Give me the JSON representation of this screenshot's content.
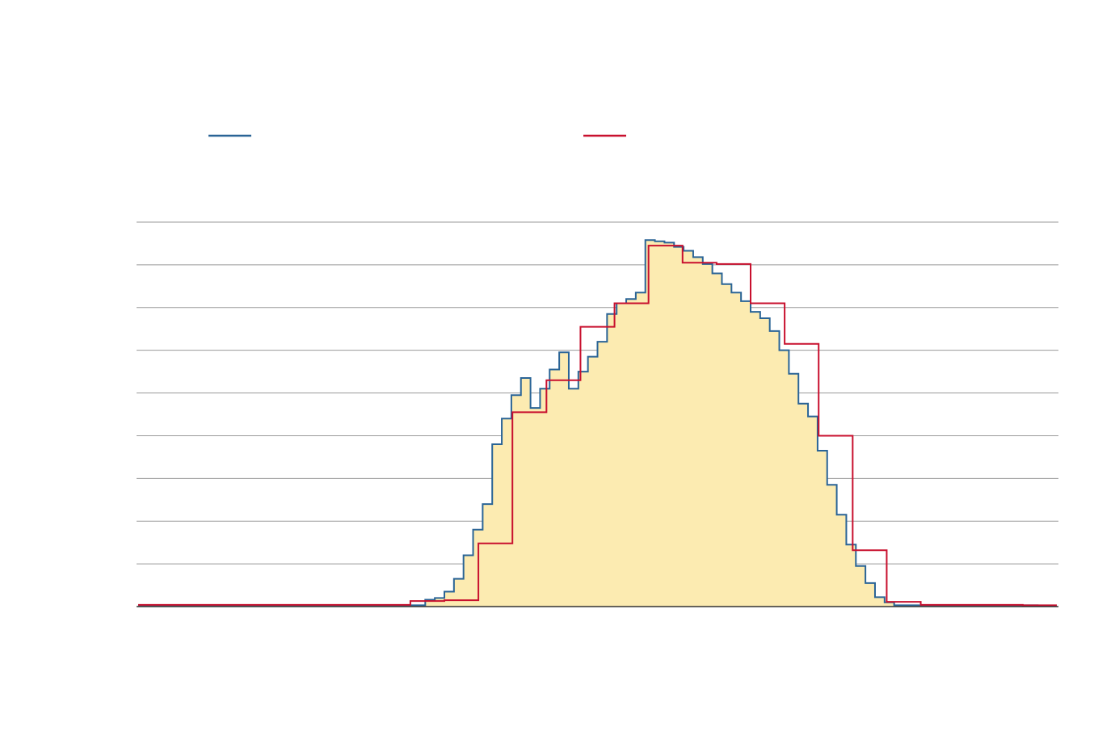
{
  "chart_data": {
    "type": "area",
    "title": "",
    "xlabel": "",
    "ylabel": "",
    "grid": true,
    "legend": "top",
    "ylim": [
      0,
      9
    ],
    "colors": {
      "fill": "#fcebb1",
      "fine": "#2a6496",
      "coarse": "#c8102e",
      "grid": "#999999",
      "axis": "#333333"
    },
    "series": [
      {
        "style": "step-fine",
        "values": [
          0.03,
          0.03,
          0.03,
          0.03,
          0.03,
          0.03,
          0.03,
          0.03,
          0.03,
          0.03,
          0.03,
          0.03,
          0.03,
          0.03,
          0.03,
          0.03,
          0.03,
          0.03,
          0.03,
          0.03,
          0.03,
          0.03,
          0.03,
          0.03,
          0.03,
          0.03,
          0.03,
          0.03,
          0.03,
          0.03,
          0.16,
          0.2,
          0.35,
          0.65,
          1.2,
          1.8,
          2.4,
          3.8,
          4.4,
          4.95,
          5.35,
          4.65,
          5.1,
          5.55,
          5.95,
          5.1,
          5.5,
          5.85,
          6.2,
          6.85,
          7.1,
          7.2,
          7.35,
          8.58,
          8.55,
          8.52,
          8.42,
          8.33,
          8.18,
          8.02,
          7.8,
          7.55,
          7.35,
          7.15,
          6.9,
          6.75,
          6.45,
          6.0,
          5.45,
          4.75,
          4.45,
          3.65,
          2.85,
          2.15,
          1.45,
          0.95,
          0.55,
          0.22,
          0.1,
          0.03,
          0.03,
          0.03,
          0.03,
          0.03,
          0.03,
          0.03,
          0.03,
          0.03,
          0.03,
          0.03,
          0.03,
          0.03,
          0.03,
          0.03,
          0.02,
          0.02
        ]
      },
      {
        "style": "step-coarse",
        "values": [
          0.04,
          0.04,
          0.04,
          0.04,
          0.04,
          0.04,
          0.04,
          0.04,
          0.13,
          0.15,
          1.48,
          4.55,
          5.3,
          6.55,
          7.1,
          8.45,
          8.05,
          8.02,
          7.1,
          6.15,
          4.0,
          1.32,
          0.11,
          0.04,
          0.04,
          0.04,
          0.03
        ]
      }
    ]
  }
}
